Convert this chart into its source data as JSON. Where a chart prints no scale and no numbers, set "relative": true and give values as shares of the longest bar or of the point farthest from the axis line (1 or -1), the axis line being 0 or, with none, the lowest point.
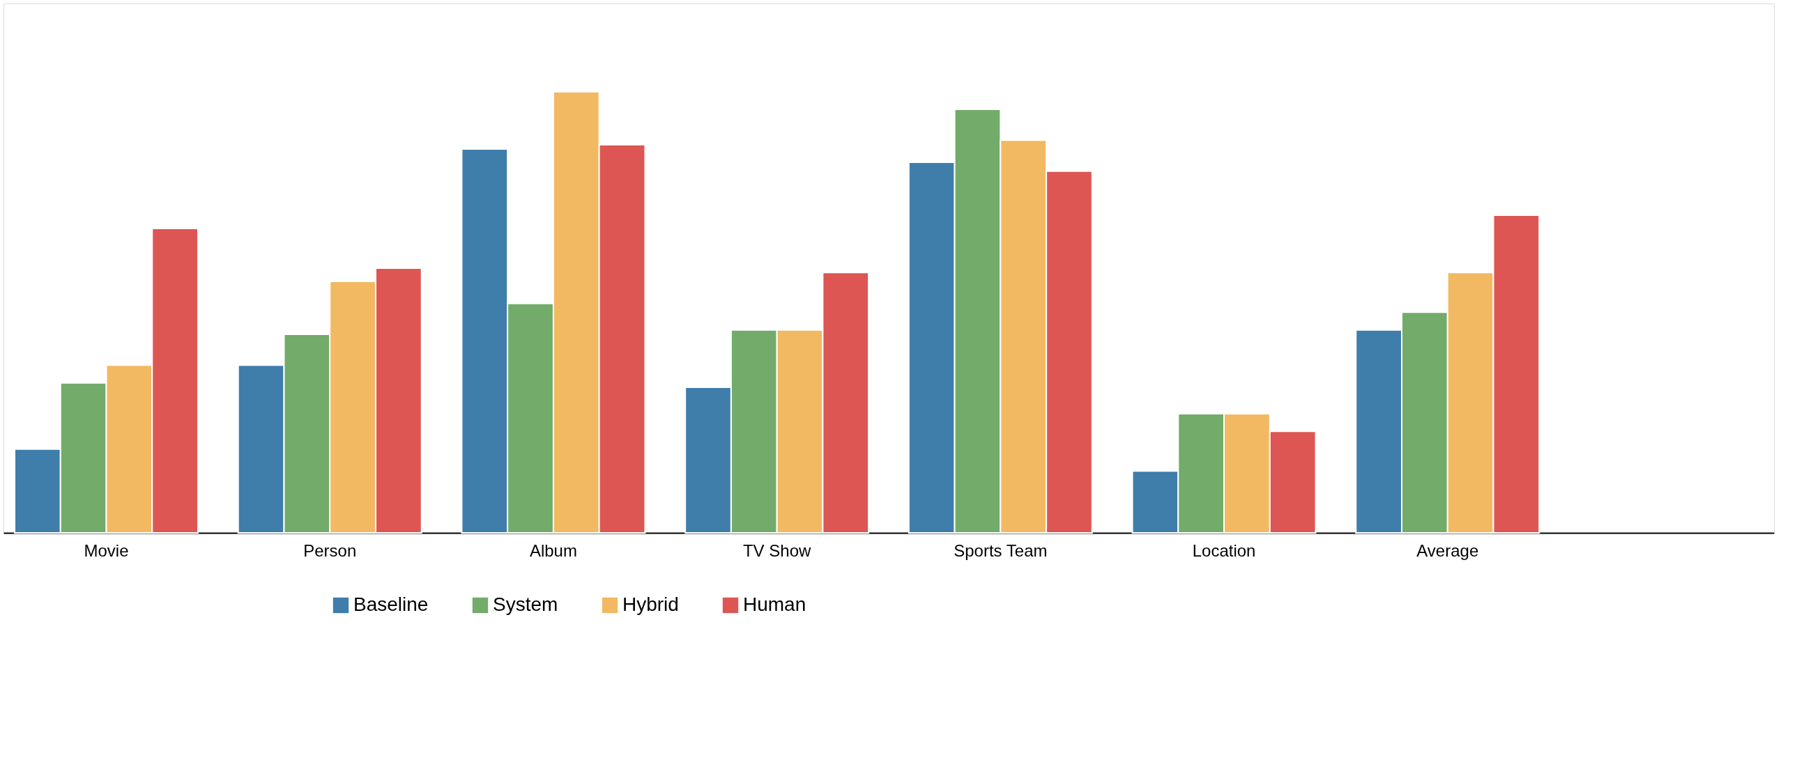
{
  "chart_data": {
    "type": "bar",
    "relative": true,
    "grid": false,
    "legend": "bottom",
    "categories": [
      "Movie",
      "Person",
      "Album",
      "TV Show",
      "Sports Team",
      "Location",
      "Average"
    ],
    "series": [
      {
        "name": "Baseline",
        "color": "#3f7dab",
        "values": [
          0.19,
          0.38,
          0.87,
          0.33,
          0.84,
          0.14,
          0.46
        ]
      },
      {
        "name": "System",
        "color": "#72ab6a",
        "values": [
          0.34,
          0.45,
          0.52,
          0.46,
          0.96,
          0.27,
          0.5
        ]
      },
      {
        "name": "Hybrid",
        "color": "#f2b962",
        "values": [
          0.38,
          0.57,
          1.0,
          0.46,
          0.89,
          0.27,
          0.59
        ]
      },
      {
        "name": "Human",
        "color": "#dd5653",
        "values": [
          0.69,
          0.6,
          0.88,
          0.59,
          0.82,
          0.23,
          0.72
        ]
      }
    ]
  }
}
